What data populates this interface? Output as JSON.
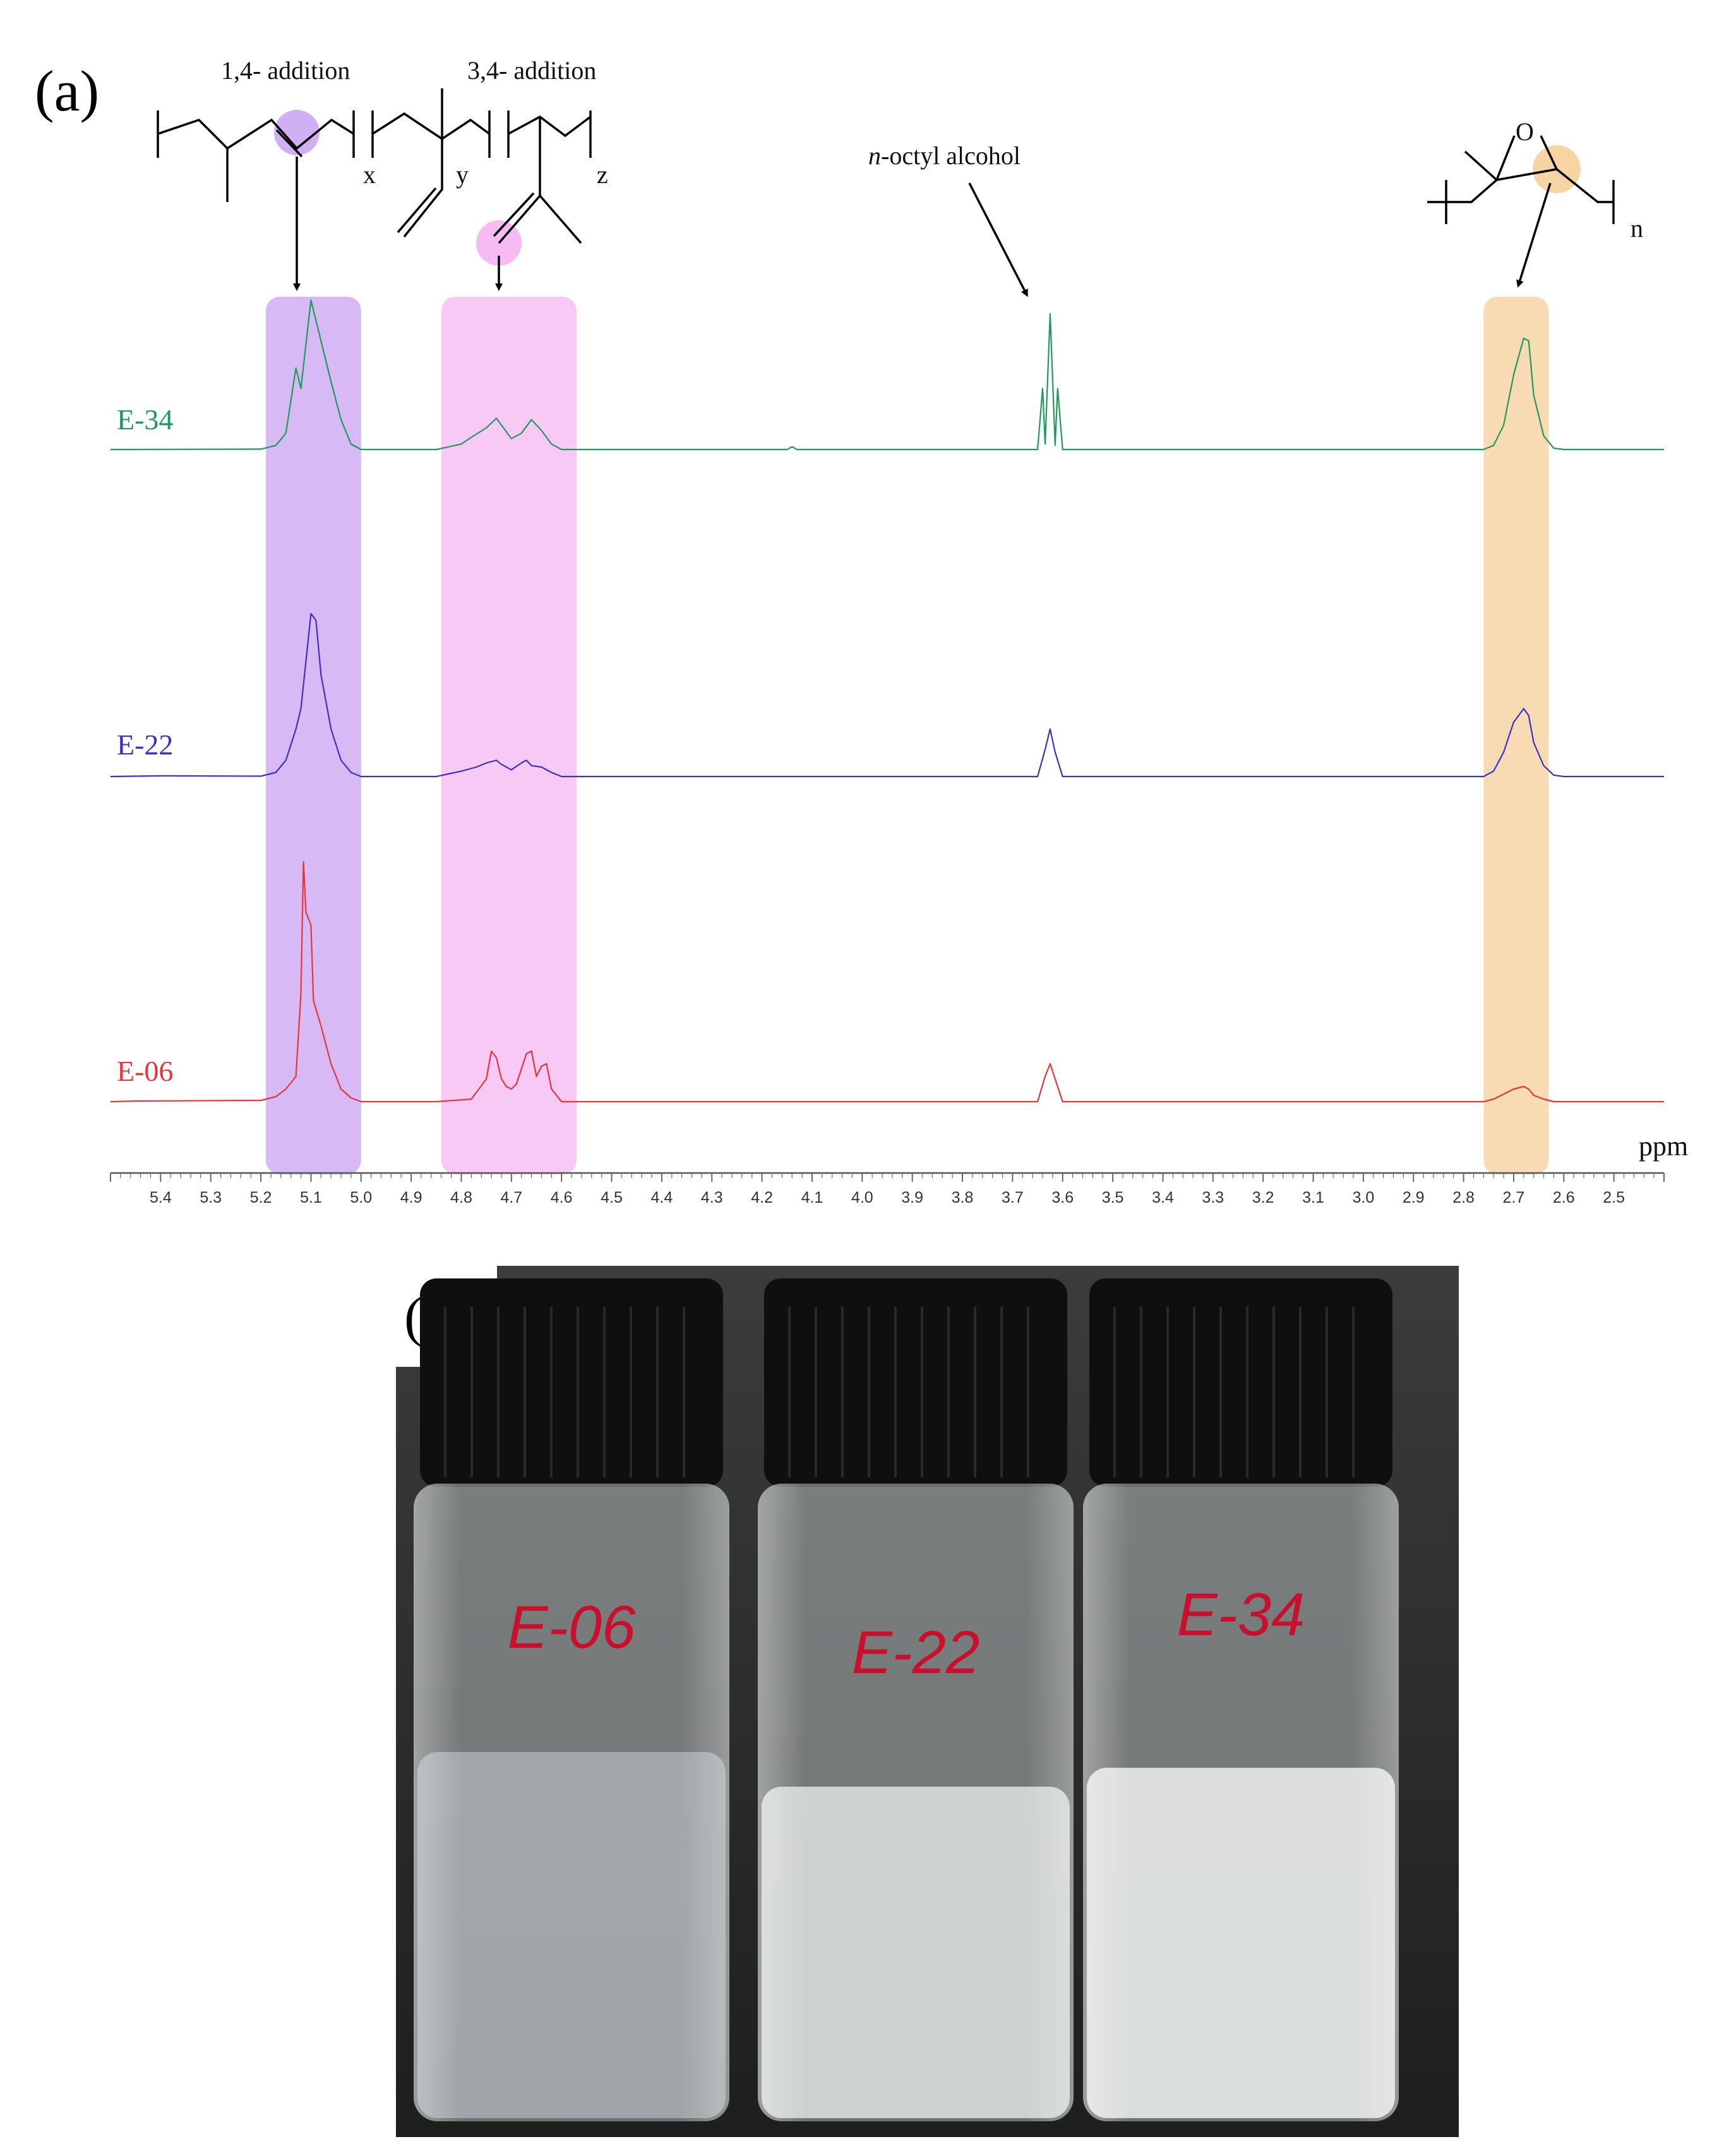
{
  "panel_a": {
    "label": "(a)",
    "annotations": {
      "addition_14": "1,4- addition",
      "addition_34": "3,4- addition",
      "octyl_prefix": "n",
      "octyl_rest": "-octyl alcohol",
      "sub_x": "x",
      "sub_y": "y",
      "sub_z": "z",
      "sub_n": "n",
      "epoxide_o": "O"
    },
    "highlight_colors": {
      "addition_14": "#c9a1f2",
      "addition_34": "#f7b7f2",
      "epoxide": "#f7cf9a"
    }
  },
  "chart_data": {
    "type": "line",
    "xlabel": "ppm",
    "x_axis_reversed": true,
    "xlim": [
      5.5,
      2.4
    ],
    "ticks": [
      "5.4",
      "5.3",
      "5.2",
      "5.1",
      "5.0",
      "4.9",
      "4.8",
      "4.7",
      "4.6",
      "4.5",
      "4.4",
      "4.3",
      "4.2",
      "4.1",
      "4.0",
      "3.9",
      "3.8",
      "3.7",
      "3.6",
      "3.5",
      "3.4",
      "3.3",
      "3.2",
      "3.1",
      "3.0",
      "2.9",
      "2.8",
      "2.7",
      "2.6",
      "2.5"
    ],
    "highlight_ranges_ppm": [
      {
        "name": "1,4- addition",
        "range": [
          5.19,
          5.0
        ]
      },
      {
        "name": "3,4- addition",
        "range": [
          4.84,
          4.57
        ]
      },
      {
        "name": "epoxide",
        "range": [
          2.76,
          2.63
        ]
      }
    ],
    "series": [
      {
        "name": "E-34",
        "color": "#1e9b5a",
        "points": [
          [
            5.5,
            0
          ],
          [
            5.2,
            0.3
          ],
          [
            5.17,
            3
          ],
          [
            5.15,
            12
          ],
          [
            5.13,
            60
          ],
          [
            5.12,
            45
          ],
          [
            5.1,
            110
          ],
          [
            5.08,
            80
          ],
          [
            5.06,
            50
          ],
          [
            5.04,
            22
          ],
          [
            5.02,
            4
          ],
          [
            5.0,
            0
          ],
          [
            4.85,
            0
          ],
          [
            4.8,
            4
          ],
          [
            4.78,
            9
          ],
          [
            4.75,
            16
          ],
          [
            4.73,
            23
          ],
          [
            4.72,
            18
          ],
          [
            4.7,
            8
          ],
          [
            4.68,
            12
          ],
          [
            4.66,
            22
          ],
          [
            4.64,
            14
          ],
          [
            4.62,
            4
          ],
          [
            4.6,
            0
          ],
          [
            4.15,
            0
          ],
          [
            4.14,
            2
          ],
          [
            4.13,
            0
          ],
          [
            3.65,
            0
          ],
          [
            3.64,
            45
          ],
          [
            3.635,
            4
          ],
          [
            3.625,
            100
          ],
          [
            3.615,
            3
          ],
          [
            3.61,
            45
          ],
          [
            3.6,
            0
          ],
          [
            2.76,
            0
          ],
          [
            2.74,
            3
          ],
          [
            2.72,
            18
          ],
          [
            2.7,
            55
          ],
          [
            2.68,
            82
          ],
          [
            2.67,
            80
          ],
          [
            2.66,
            40
          ],
          [
            2.64,
            10
          ],
          [
            2.62,
            1
          ],
          [
            2.6,
            0
          ],
          [
            2.4,
            0
          ]
        ]
      },
      {
        "name": "E-22",
        "color": "#3b31c7",
        "points": [
          [
            5.5,
            0
          ],
          [
            5.4,
            0.5
          ],
          [
            5.2,
            0.3
          ],
          [
            5.17,
            3
          ],
          [
            5.15,
            12
          ],
          [
            5.13,
            35
          ],
          [
            5.12,
            50
          ],
          [
            5.1,
            120
          ],
          [
            5.09,
            115
          ],
          [
            5.08,
            75
          ],
          [
            5.06,
            35
          ],
          [
            5.04,
            12
          ],
          [
            5.02,
            3
          ],
          [
            5.0,
            0
          ],
          [
            4.85,
            0
          ],
          [
            4.8,
            4
          ],
          [
            4.77,
            7
          ],
          [
            4.75,
            10
          ],
          [
            4.73,
            12
          ],
          [
            4.72,
            9
          ],
          [
            4.7,
            5
          ],
          [
            4.68,
            10
          ],
          [
            4.67,
            12
          ],
          [
            4.66,
            8
          ],
          [
            4.64,
            7
          ],
          [
            4.62,
            3
          ],
          [
            4.6,
            0
          ],
          [
            3.65,
            0
          ],
          [
            3.635,
            20
          ],
          [
            3.625,
            35
          ],
          [
            3.615,
            18
          ],
          [
            3.6,
            0
          ],
          [
            2.76,
            0
          ],
          [
            2.74,
            4
          ],
          [
            2.72,
            18
          ],
          [
            2.7,
            40
          ],
          [
            2.68,
            50
          ],
          [
            2.67,
            45
          ],
          [
            2.66,
            25
          ],
          [
            2.64,
            8
          ],
          [
            2.62,
            1
          ],
          [
            2.6,
            0
          ],
          [
            2.4,
            0
          ]
        ]
      },
      {
        "name": "E-06",
        "color": "#e8343a",
        "points": [
          [
            5.5,
            0
          ],
          [
            5.45,
            0.5
          ],
          [
            5.2,
            1
          ],
          [
            5.17,
            4
          ],
          [
            5.15,
            10
          ],
          [
            5.13,
            20
          ],
          [
            5.12,
            85
          ],
          [
            5.115,
            190
          ],
          [
            5.11,
            150
          ],
          [
            5.1,
            140
          ],
          [
            5.095,
            80
          ],
          [
            5.08,
            60
          ],
          [
            5.06,
            30
          ],
          [
            5.04,
            10
          ],
          [
            5.02,
            3
          ],
          [
            5.0,
            0
          ],
          [
            4.85,
            0
          ],
          [
            4.78,
            2
          ],
          [
            4.75,
            18
          ],
          [
            4.74,
            40
          ],
          [
            4.73,
            35
          ],
          [
            4.72,
            18
          ],
          [
            4.71,
            12
          ],
          [
            4.7,
            10
          ],
          [
            4.69,
            14
          ],
          [
            4.67,
            38
          ],
          [
            4.66,
            40
          ],
          [
            4.65,
            20
          ],
          [
            4.64,
            28
          ],
          [
            4.63,
            30
          ],
          [
            4.62,
            10
          ],
          [
            4.6,
            0
          ],
          [
            3.65,
            0
          ],
          [
            3.635,
            20
          ],
          [
            3.625,
            30
          ],
          [
            3.615,
            18
          ],
          [
            3.6,
            0
          ],
          [
            2.76,
            0
          ],
          [
            2.74,
            2
          ],
          [
            2.72,
            6
          ],
          [
            2.7,
            10
          ],
          [
            2.68,
            12
          ],
          [
            2.67,
            10
          ],
          [
            2.66,
            5
          ],
          [
            2.64,
            2
          ],
          [
            2.62,
            0
          ],
          [
            2.4,
            0
          ]
        ]
      }
    ]
  },
  "panel_b": {
    "label": "(b)",
    "vials": [
      {
        "label": "E-06",
        "liquid_color": "#ccd4d9",
        "turbidity": 0.1
      },
      {
        "label": "E-22",
        "liquid_color": "#e4e7e9",
        "turbidity": 0.7
      },
      {
        "label": "E-34",
        "liquid_color": "#e8eaeb",
        "turbidity": 0.85
      }
    ]
  }
}
